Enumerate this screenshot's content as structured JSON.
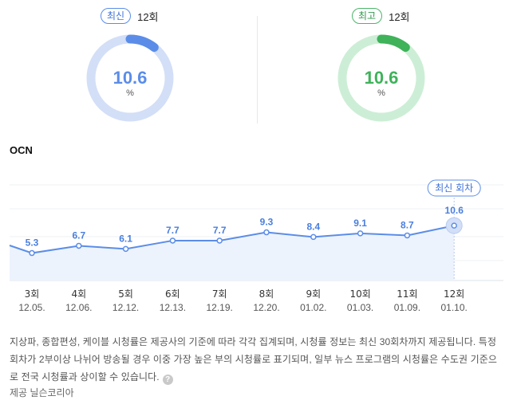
{
  "latest": {
    "badge": "최신",
    "episode": "12회",
    "value": "10.6",
    "unit": "%",
    "fraction": 0.106,
    "color": "#5b8de8",
    "track": "#d3dff7"
  },
  "best": {
    "badge": "최고",
    "episode": "12회",
    "value": "10.6",
    "unit": "%",
    "fraction": 0.106,
    "color": "#3fb25a",
    "track": "#cdeed6"
  },
  "channel": "OCN",
  "chart_data": {
    "type": "area",
    "categories": [
      "3회",
      "4회",
      "5회",
      "6회",
      "7회",
      "8회",
      "9회",
      "10회",
      "11회",
      "12회"
    ],
    "dates": [
      "12.05.",
      "12.06.",
      "12.12.",
      "12.13.",
      "12.19.",
      "12.20.",
      "01.02.",
      "01.03.",
      "01.09.",
      "01.10."
    ],
    "values": [
      5.3,
      6.7,
      6.1,
      7.7,
      7.7,
      9.3,
      8.4,
      9.1,
      8.7,
      10.6
    ],
    "highlight_label": "최신 회차",
    "line_color": "#5b8de8",
    "fill_color": "#edf3fd"
  },
  "note": "지상파, 종합편성, 케이블 시청률은 제공사의 기준에 따라 각각 집계되며, 시청률 정보는 최신 30회차까지 제공됩니다. 특정 회차가 2부이상 나뉘어 방송될 경우 이중 가장 높은 부의 시청률로 표기되며, 일부 뉴스 프로그램의 시청률은 수도권 기준으로 전국 시청률과 상이할 수 있습니다.",
  "help_icon": "?",
  "source": "제공 닐슨코리아"
}
